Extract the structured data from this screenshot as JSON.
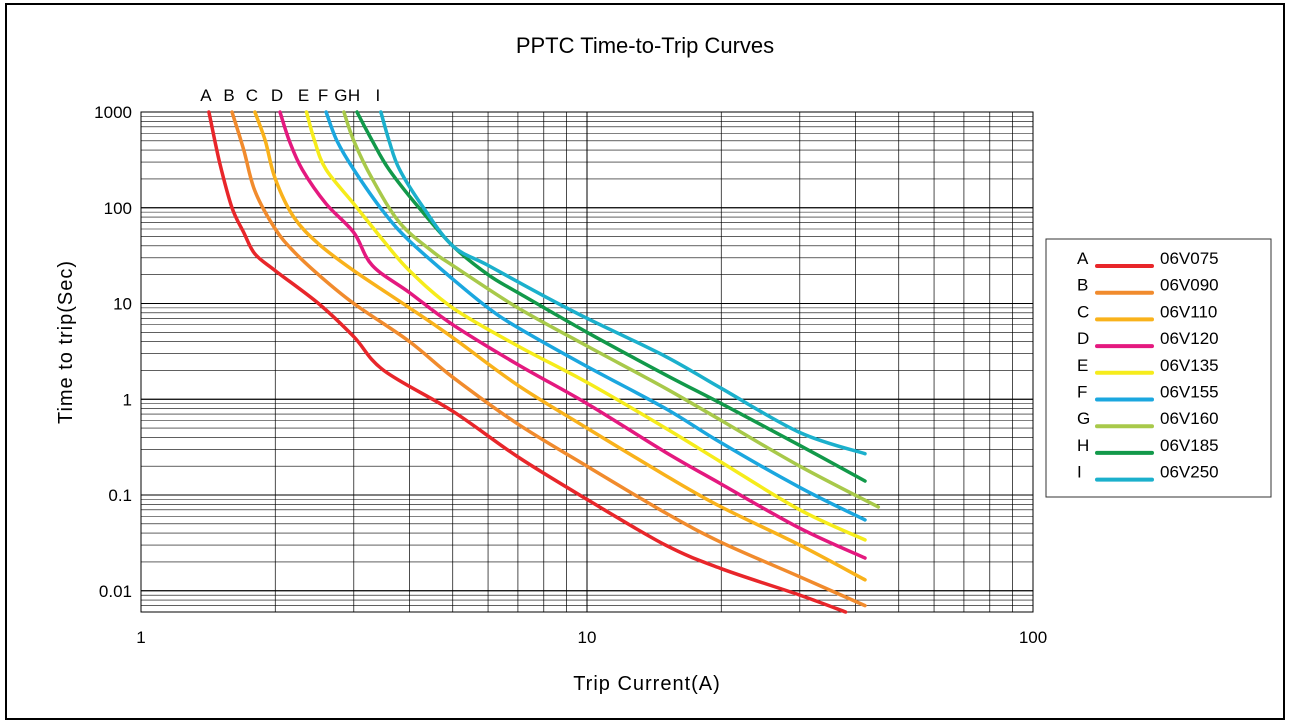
{
  "chart_data": {
    "type": "line",
    "title": "PPTC Time-to-Trip Curves",
    "xlabel": "Trip Current(A)",
    "ylabel": "Time to trip(Sec)",
    "x_scale": "log",
    "y_scale": "log",
    "xlim": [
      1,
      100
    ],
    "ylim": [
      0.006,
      1000
    ],
    "x_ticks": [
      {
        "value": 1,
        "label": "1"
      },
      {
        "value": 10,
        "label": "10"
      },
      {
        "value": 100,
        "label": "100"
      }
    ],
    "y_ticks": [
      {
        "value": 1000,
        "label": "1000"
      },
      {
        "value": 100,
        "label": "100"
      },
      {
        "value": 10,
        "label": "10"
      },
      {
        "value": 1,
        "label": "1"
      },
      {
        "value": 0.1,
        "label": "0.1"
      },
      {
        "value": 0.01,
        "label": "0.01"
      }
    ],
    "grid": true,
    "legend_position": "right",
    "series": [
      {
        "name": "06V075",
        "letter": "A",
        "color": "#e8262a",
        "points": [
          [
            1.42,
            1000
          ],
          [
            1.5,
            300
          ],
          [
            1.6,
            100
          ],
          [
            1.7,
            55
          ],
          [
            1.8,
            33
          ],
          [
            2.0,
            22
          ],
          [
            2.5,
            10
          ],
          [
            3.0,
            4.5
          ],
          [
            3.5,
            2.0
          ],
          [
            5,
            0.75
          ],
          [
            7,
            0.25
          ],
          [
            10,
            0.09
          ],
          [
            15,
            0.03
          ],
          [
            20,
            0.017
          ],
          [
            30,
            0.009
          ],
          [
            38,
            0.006
          ]
        ]
      },
      {
        "name": "06V090",
        "letter": "B",
        "color": "#f18b2d",
        "points": [
          [
            1.6,
            1000
          ],
          [
            1.7,
            400
          ],
          [
            1.8,
            150
          ],
          [
            2.0,
            60
          ],
          [
            2.2,
            35
          ],
          [
            2.5,
            20
          ],
          [
            3,
            10
          ],
          [
            4,
            4
          ],
          [
            5,
            1.7
          ],
          [
            7,
            0.55
          ],
          [
            10,
            0.2
          ],
          [
            15,
            0.065
          ],
          [
            20,
            0.032
          ],
          [
            30,
            0.014
          ],
          [
            42,
            0.007
          ]
        ]
      },
      {
        "name": "06V110",
        "letter": "C",
        "color": "#f9b21b",
        "points": [
          [
            1.8,
            1000
          ],
          [
            1.9,
            500
          ],
          [
            2.0,
            200
          ],
          [
            2.2,
            80
          ],
          [
            2.5,
            42
          ],
          [
            3,
            22
          ],
          [
            4,
            9
          ],
          [
            5,
            4.4
          ],
          [
            7,
            1.4
          ],
          [
            10,
            0.5
          ],
          [
            15,
            0.16
          ],
          [
            20,
            0.075
          ],
          [
            30,
            0.03
          ],
          [
            42,
            0.013
          ]
        ]
      },
      {
        "name": "06V120",
        "letter": "D",
        "color": "#e4197f",
        "points": [
          [
            2.05,
            1000
          ],
          [
            2.15,
            500
          ],
          [
            2.3,
            250
          ],
          [
            2.6,
            110
          ],
          [
            3,
            55
          ],
          [
            3.3,
            25
          ],
          [
            4,
            13
          ],
          [
            5,
            6
          ],
          [
            7,
            2.3
          ],
          [
            10,
            0.9
          ],
          [
            15,
            0.28
          ],
          [
            20,
            0.13
          ],
          [
            30,
            0.045
          ],
          [
            42,
            0.022
          ]
        ]
      },
      {
        "name": "06V135",
        "letter": "E",
        "color": "#f6ec1b",
        "points": [
          [
            2.35,
            1000
          ],
          [
            2.45,
            500
          ],
          [
            2.6,
            250
          ],
          [
            3,
            110
          ],
          [
            3.5,
            45
          ],
          [
            4,
            22
          ],
          [
            5,
            9
          ],
          [
            7,
            3.6
          ],
          [
            10,
            1.5
          ],
          [
            15,
            0.5
          ],
          [
            20,
            0.22
          ],
          [
            30,
            0.07
          ],
          [
            42,
            0.034
          ]
        ]
      },
      {
        "name": "06V155",
        "letter": "F",
        "color": "#1ba7df",
        "points": [
          [
            2.6,
            1000
          ],
          [
            2.75,
            500
          ],
          [
            3,
            250
          ],
          [
            3.5,
            90
          ],
          [
            4,
            45
          ],
          [
            5,
            18
          ],
          [
            6,
            9
          ],
          [
            7,
            5.6
          ],
          [
            10,
            2.2
          ],
          [
            15,
            0.8
          ],
          [
            20,
            0.35
          ],
          [
            30,
            0.12
          ],
          [
            42,
            0.055
          ]
        ]
      },
      {
        "name": "06V160",
        "letter": "G",
        "color": "#a8c94a",
        "points": [
          [
            2.85,
            1000
          ],
          [
            3,
            500
          ],
          [
            3.3,
            200
          ],
          [
            3.8,
            70
          ],
          [
            4.5,
            35
          ],
          [
            5,
            25
          ],
          [
            7,
            9
          ],
          [
            10,
            3.6
          ],
          [
            15,
            1.3
          ],
          [
            20,
            0.6
          ],
          [
            30,
            0.2
          ],
          [
            45,
            0.075
          ]
        ]
      },
      {
        "name": "06V185",
        "letter": "H",
        "color": "#12994a",
        "points": [
          [
            3.05,
            1000
          ],
          [
            3.3,
            500
          ],
          [
            3.6,
            250
          ],
          [
            4.2,
            100
          ],
          [
            5,
            40
          ],
          [
            6,
            20
          ],
          [
            7,
            13
          ],
          [
            10,
            5
          ],
          [
            15,
            1.8
          ],
          [
            20,
            0.9
          ],
          [
            30,
            0.33
          ],
          [
            42,
            0.14
          ]
        ]
      },
      {
        "name": "06V250",
        "letter": "I",
        "color": "#1bb0cc",
        "points": [
          [
            3.45,
            1000
          ],
          [
            3.6,
            500
          ],
          [
            3.8,
            250
          ],
          [
            4.3,
            100
          ],
          [
            5,
            40
          ],
          [
            6,
            25
          ],
          [
            8,
            12
          ],
          [
            10,
            7
          ],
          [
            15,
            2.8
          ],
          [
            20,
            1.3
          ],
          [
            30,
            0.45
          ],
          [
            42,
            0.27
          ]
        ]
      }
    ]
  }
}
